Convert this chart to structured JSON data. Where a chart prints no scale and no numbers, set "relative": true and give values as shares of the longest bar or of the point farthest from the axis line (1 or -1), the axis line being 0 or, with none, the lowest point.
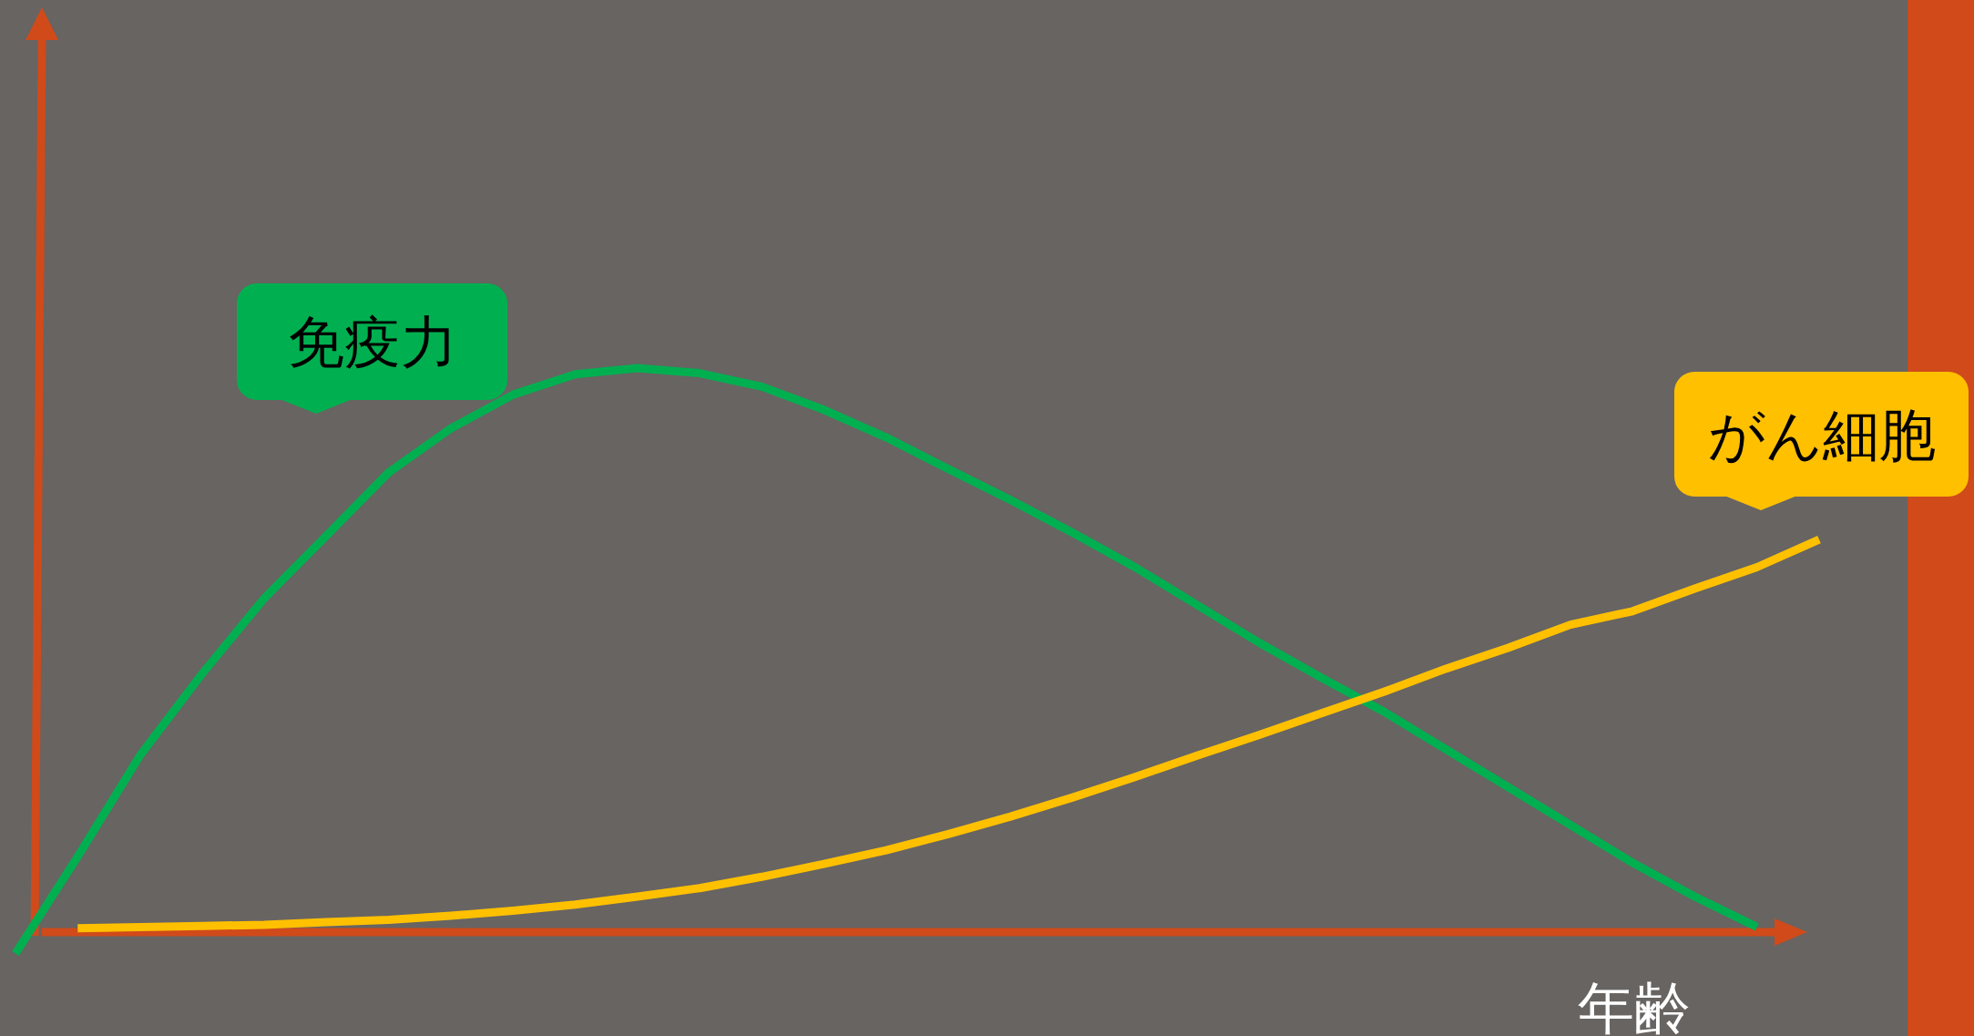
{
  "chart_data": {
    "type": "line",
    "relative": true,
    "xlabel": "年齢",
    "categories": [
      null,
      null,
      null,
      null,
      null,
      null,
      null,
      null,
      null,
      null,
      null,
      null,
      null,
      null,
      null,
      null,
      null,
      null,
      null,
      null,
      null,
      null,
      null,
      null,
      null,
      null,
      null,
      null,
      null,
      null
    ],
    "series": [
      {
        "name": "免疫力",
        "color": "#00b050",
        "values": [
          -0.038,
          0.134,
          0.313,
          0.458,
          0.592,
          0.703,
          0.815,
          0.893,
          0.953,
          0.989,
          1,
          0.991,
          0.967,
          0.926,
          0.877,
          0.821,
          0.766,
          0.708,
          0.647,
          0.58,
          0.513,
          0.451,
          0.391,
          0.324,
          0.257,
          0.19,
          0.123,
          0.063,
          0.009,
          null
        ]
      },
      {
        "name": "がん細胞",
        "color": "#ffc000",
        "values": [
          null,
          0.007,
          0.009,
          0.011,
          0.013,
          0.018,
          0.022,
          0.029,
          0.038,
          0.049,
          0.063,
          0.078,
          0.098,
          0.121,
          0.145,
          0.174,
          0.205,
          0.239,
          0.275,
          0.313,
          0.35,
          0.388,
          0.426,
          0.467,
          0.504,
          0.545,
          0.569,
          0.609,
          0.647,
          0.696
        ]
      }
    ],
    "ref_lines": [
      {
        "axis": "y",
        "value": 0,
        "color": "#d04a1a"
      }
    ],
    "legend": false,
    "grid": false,
    "marker": "none",
    "line_style": "solid"
  }
}
